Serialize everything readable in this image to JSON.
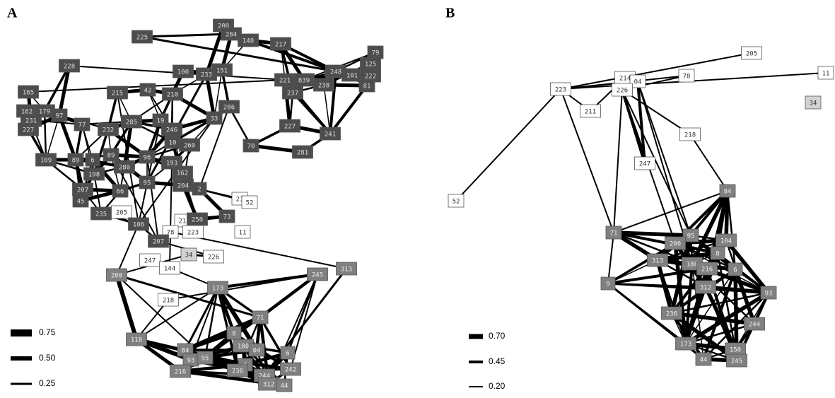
{
  "panels": [
    {
      "label": "A",
      "nodes": [
        "225",
        "280",
        "284",
        "148",
        "217",
        "228",
        "100",
        "233",
        "151",
        "221",
        "839",
        "238",
        "248",
        "101",
        "79",
        "125",
        "222",
        "81",
        "237",
        "165",
        "215",
        "42",
        "210",
        "162",
        "179",
        "231",
        "97",
        "227",
        "77",
        "232",
        "285",
        "19",
        "286",
        "33",
        "246",
        "227",
        "241",
        "10",
        "260",
        "70",
        "281",
        "109",
        "89",
        "6",
        "89",
        "96",
        "280",
        "193",
        "198",
        "162",
        "95",
        "204",
        "2",
        "207",
        "66",
        "45",
        "235",
        "205",
        "21",
        "52",
        "106",
        "21",
        "250",
        "73",
        "78",
        "223",
        "11",
        "207",
        "247",
        "34",
        "144",
        "226",
        "200",
        "245",
        "313",
        "173",
        "218",
        "71",
        "118",
        "8",
        "180",
        "04",
        "6",
        "84",
        "93",
        "95",
        "9",
        "236",
        "244",
        "242",
        "216",
        "312",
        "44"
      ],
      "legend": [
        "0.75",
        "0.50",
        "0.25"
      ]
    },
    {
      "label": "B",
      "nodes": [
        "205",
        "11",
        "78",
        "214",
        "04",
        "223",
        "226",
        "34",
        "211",
        "218",
        "247",
        "52",
        "84",
        "71",
        "95",
        "104",
        "200",
        "8",
        "313",
        "180",
        "216",
        "6",
        "9",
        "312",
        "93",
        "236",
        "244",
        "173",
        "150",
        "44",
        "245"
      ],
      "legend": [
        "0.70",
        "0.45",
        "0.20"
      ]
    }
  ]
}
